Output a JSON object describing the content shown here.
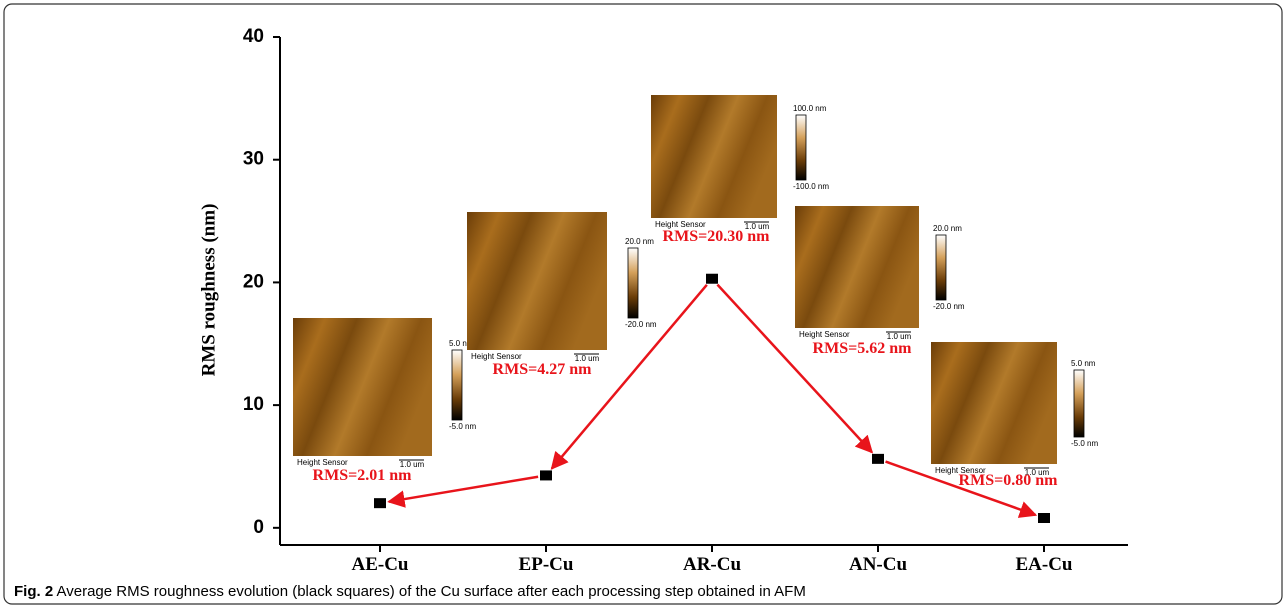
{
  "chart_data": {
    "type": "scatter",
    "y_label": "RMS roughness (nm)",
    "categories": [
      "AE-Cu",
      "EP-Cu",
      "AR-Cu",
      "AN-Cu",
      "EA-Cu"
    ],
    "values": [
      2.01,
      4.27,
      20.3,
      5.62,
      0.8
    ],
    "value_labels": [
      "RMS=2.01 nm",
      "RMS=4.27 nm",
      "RMS=20.30 nm",
      "RMS=5.62 nm",
      "RMS=0.80 nm"
    ],
    "color": "#000000",
    "arrow_color": "#e8141b",
    "ylim": [
      -1.4,
      40
    ],
    "yticks": [
      0,
      10,
      20,
      30,
      40
    ]
  },
  "insets": [
    {
      "max_label": "5.0 nm",
      "min_label": "-5.0 nm",
      "sensor_label": "Height Sensor",
      "scale_label": "1.0 um"
    },
    {
      "max_label": "20.0 nm",
      "min_label": "-20.0 nm",
      "sensor_label": "Height Sensor",
      "scale_label": "1.0 um"
    },
    {
      "max_label": "100.0 nm",
      "min_label": "-100.0 nm",
      "sensor_label": "Height Sensor",
      "scale_label": "1.0 um"
    },
    {
      "max_label": "20.0 nm",
      "min_label": "-20.0 nm",
      "sensor_label": "Height Sensor",
      "scale_label": "1.0 um"
    },
    {
      "max_label": "5.0 nm",
      "min_label": "-5.0 nm",
      "sensor_label": "Height Sensor",
      "scale_label": "1.0 um"
    }
  ],
  "caption": {
    "label": "Fig. 2",
    "text": "Average RMS roughness evolution (black squares) of the Cu surface after each processing step obtained in AFM"
  }
}
